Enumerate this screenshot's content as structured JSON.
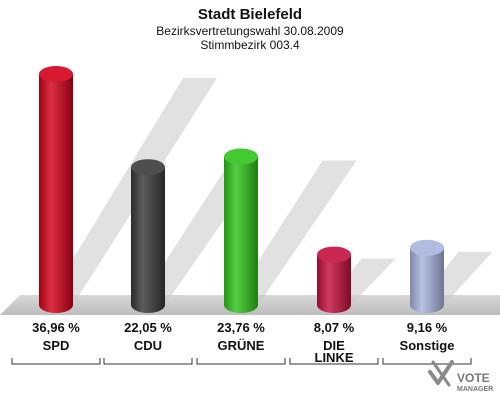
{
  "chart_data": {
    "type": "bar",
    "title": "Stadt Bielefeld",
    "subtitle_lines": [
      "Bezirksvertretungswahl 30.08.2009",
      "Stimmbezirk 003.4"
    ],
    "categories": [
      [
        "SPD"
      ],
      [
        "CDU"
      ],
      [
        "GRÜNE"
      ],
      [
        "DIE",
        "LINKE"
      ],
      [
        "Sonstige"
      ]
    ],
    "value_labels": [
      "36,96 %",
      "22,05 %",
      "23,76 %",
      "8,07 %",
      "9,16 %"
    ],
    "values": [
      36.96,
      22.05,
      23.76,
      8.07,
      9.16
    ],
    "colors": [
      "#d4001a",
      "#3a3a3a",
      "#2fc41a",
      "#c4103f",
      "#a8b4de"
    ],
    "ylim": [
      0,
      40
    ],
    "unit": "%",
    "grid": false,
    "legend": "none"
  },
  "logo": {
    "line1": "VOTE",
    "line2": "MANAGER"
  }
}
